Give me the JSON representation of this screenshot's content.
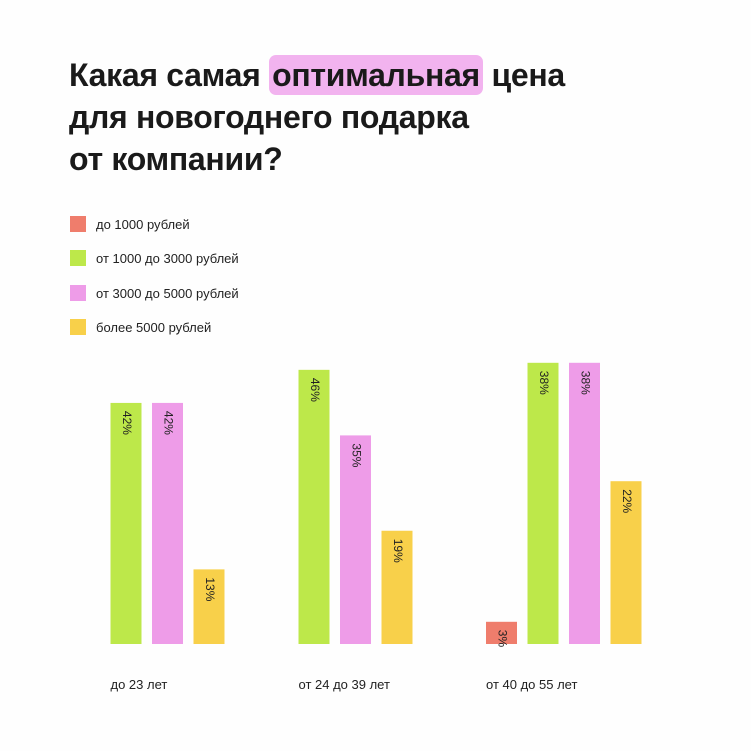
{
  "title": {
    "before": "Какая самая",
    "highlight": "оптимальная",
    "after": "цена",
    "line2": "для новогоднего подарка",
    "line3": "от компании?",
    "highlight_color": "#f2b3ef"
  },
  "chart_data": {
    "type": "bar",
    "categories": [
      "до 23 лет",
      "от 24 до 39 лет",
      "от 40 до 55 лет"
    ],
    "series": [
      {
        "name": "до 1000 рублей",
        "color": "#ef7d6c",
        "values": [
          null,
          null,
          3
        ]
      },
      {
        "name": "от 1000 до 3000 рублей",
        "color": "#bde84a",
        "values": [
          42,
          46,
          38
        ]
      },
      {
        "name": "от 3000 до 5000 рублей",
        "color": "#ee9ce8",
        "values": [
          42,
          35,
          38
        ]
      },
      {
        "name": "более 5000 рублей",
        "color": "#f8d04a",
        "values": [
          13,
          19,
          22
        ]
      }
    ],
    "value_suffix": "%",
    "legend_position": "top-left",
    "grid": false
  }
}
